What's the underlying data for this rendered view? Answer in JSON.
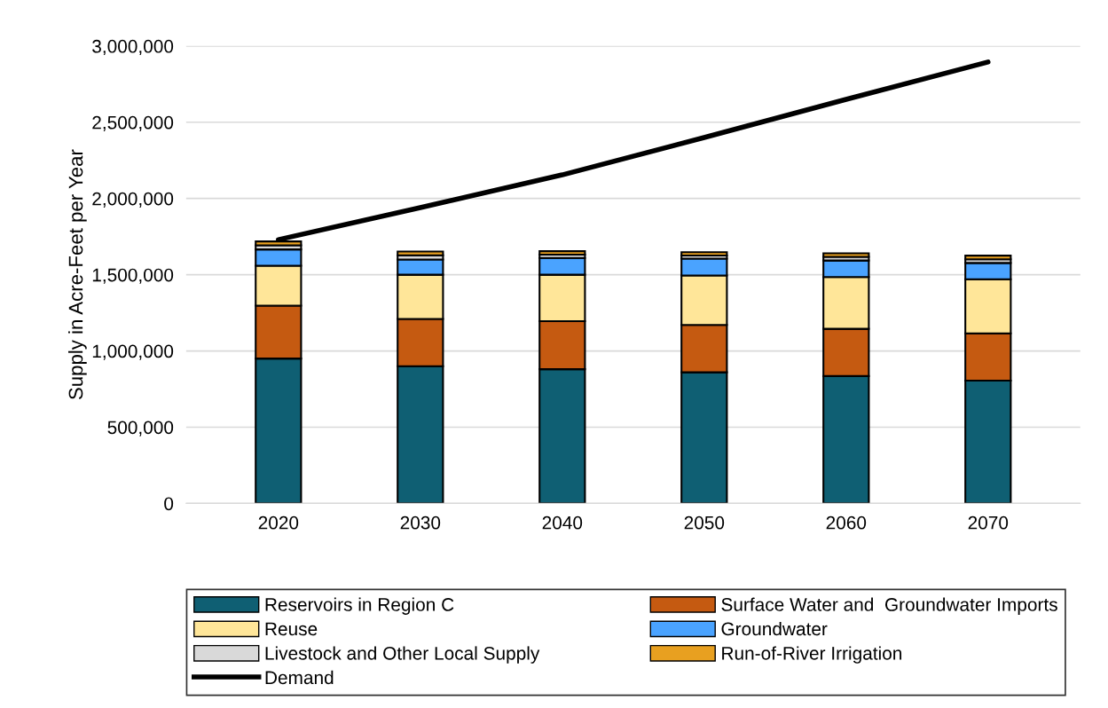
{
  "chart_data": {
    "type": "bar",
    "stacked": true,
    "ylabel": "Supply in Acre-Feet per Year",
    "categories": [
      "2020",
      "2030",
      "2040",
      "2050",
      "2060",
      "2070"
    ],
    "series": [
      {
        "name": "Reservoirs in Region C",
        "color": "#0f5f73",
        "values": [
          950000,
          900000,
          880000,
          860000,
          835000,
          805000
        ]
      },
      {
        "name": "Surface Water and  Groundwater Imports",
        "color": "#c55a11",
        "values": [
          347000,
          310000,
          315000,
          310000,
          310000,
          310000
        ]
      },
      {
        "name": "Reuse",
        "color": "#ffe699",
        "values": [
          262000,
          290000,
          305000,
          325000,
          340000,
          355000
        ]
      },
      {
        "name": "Groundwater",
        "color": "#4aa3ff",
        "values": [
          107000,
          100000,
          110000,
          110000,
          108000,
          107000
        ]
      },
      {
        "name": "Livestock and Other Local Supply",
        "color": "#d9d9d9",
        "values": [
          27000,
          27000,
          22000,
          21000,
          24000,
          24000
        ]
      },
      {
        "name": "Run-of-River Irrigation",
        "color": "#e8a020",
        "values": [
          25000,
          25000,
          22000,
          22000,
          23000,
          24000
        ]
      },
      {
        "name": "Demand",
        "type": "line",
        "color": "#000000",
        "values": [
          1730000,
          1940000,
          2155000,
          2400000,
          2650000,
          2895000
        ]
      }
    ],
    "ylim": [
      0,
      3000000
    ],
    "yticks": [
      {
        "value": 0,
        "label": "0"
      },
      {
        "value": 500000,
        "label": "500,000"
      },
      {
        "value": 1000000,
        "label": "1,000,000"
      },
      {
        "value": 1500000,
        "label": "1,500,000"
      },
      {
        "value": 2000000,
        "label": "2,000,000"
      },
      {
        "value": 2500000,
        "label": "2,500,000"
      },
      {
        "value": 3000000,
        "label": "3,000,000"
      }
    ],
    "grid": "y",
    "legend": "bottom"
  }
}
